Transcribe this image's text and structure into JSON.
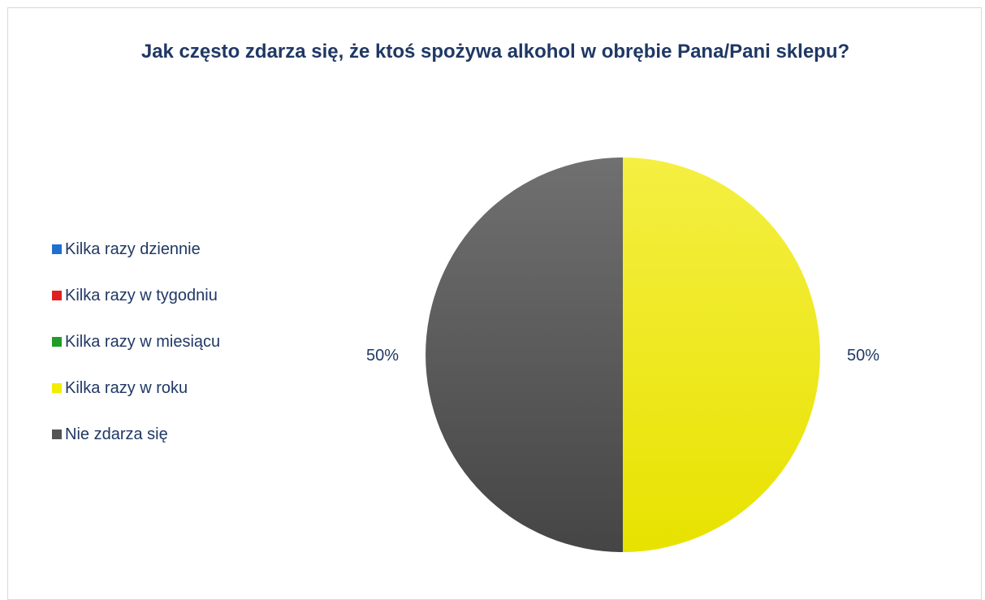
{
  "chart_data": {
    "type": "pie",
    "title": "Jak często zdarza się, że ktoś spożywa alkohol w obrębie Pana/Pani sklepu?",
    "categories": [
      "Kilka razy dziennie",
      "Kilka razy w tygodniu",
      "Kilka razy w miesiącu",
      "Kilka razy w roku",
      "Nie zdarza się"
    ],
    "values": [
      0,
      0,
      0,
      50,
      50
    ],
    "unit": "%",
    "colors": [
      "#1f6fd1",
      "#e02020",
      "#1f9d25",
      "#f2ee00",
      "#545454"
    ],
    "data_labels": [
      "",
      "",
      "",
      "50%",
      "50%"
    ],
    "legend_position": "left",
    "start_angle": "top",
    "direction": "clockwise"
  }
}
